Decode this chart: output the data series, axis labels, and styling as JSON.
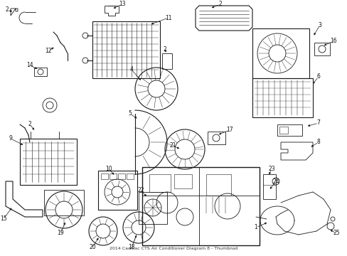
{
  "title": "2014 Cadillac CTS Air Conditioner Diagram 8 - Thumbnail",
  "bg_color": "#ffffff",
  "line_color": "#1a1a1a",
  "label_color": "#111111",
  "figsize": [
    4.89,
    3.6
  ],
  "dpi": 100
}
